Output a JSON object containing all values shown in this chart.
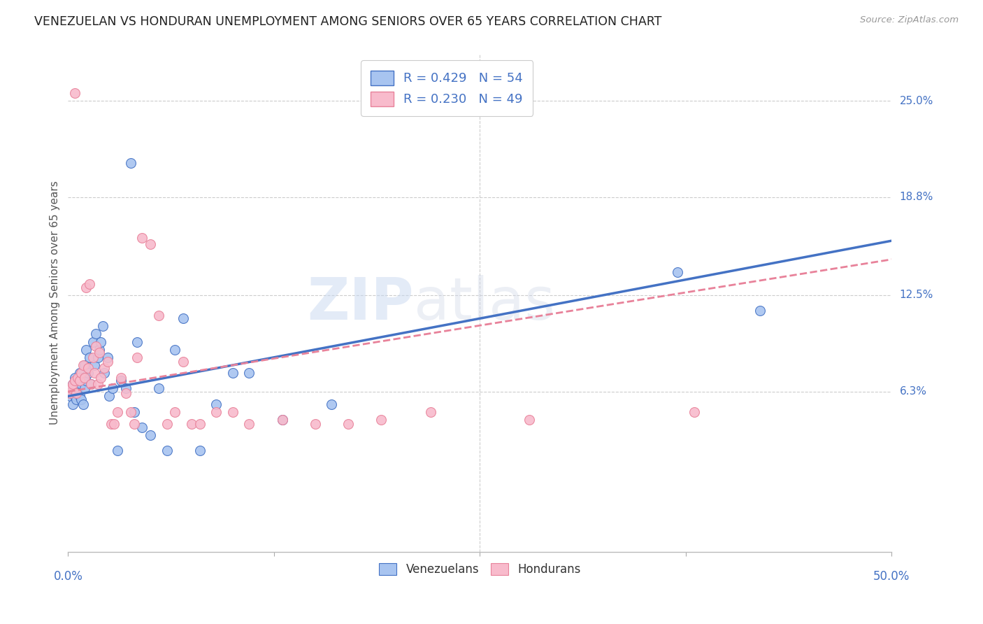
{
  "title": "VENEZUELAN VS HONDURAN UNEMPLOYMENT AMONG SENIORS OVER 65 YEARS CORRELATION CHART",
  "source": "Source: ZipAtlas.com",
  "ylabel": "Unemployment Among Seniors over 65 years",
  "ytick_labels": [
    "6.3%",
    "12.5%",
    "18.8%",
    "25.0%"
  ],
  "ytick_values": [
    0.063,
    0.125,
    0.188,
    0.25
  ],
  "xlim": [
    0.0,
    0.5
  ],
  "ylim": [
    -0.04,
    0.28
  ],
  "legend_label1": "Venezuelans",
  "legend_label2": "Hondurans",
  "r1": 0.429,
  "n1": 54,
  "r2": 0.23,
  "n2": 49,
  "color_blue": "#A8C4F0",
  "color_pink": "#F8BBCC",
  "color_line_blue": "#4472C4",
  "color_line_pink": "#E8829A",
  "color_title": "#222222",
  "color_axis_label": "#555555",
  "color_tick_blue": "#4472C4",
  "color_source": "#999999",
  "watermark_zip": "ZIP",
  "watermark_atlas": "atlas",
  "venezuelan_x": [
    0.001,
    0.002,
    0.003,
    0.003,
    0.004,
    0.004,
    0.005,
    0.005,
    0.006,
    0.006,
    0.007,
    0.007,
    0.008,
    0.008,
    0.009,
    0.009,
    0.01,
    0.01,
    0.011,
    0.011,
    0.012,
    0.013,
    0.014,
    0.015,
    0.016,
    0.017,
    0.018,
    0.019,
    0.02,
    0.021,
    0.022,
    0.024,
    0.025,
    0.027,
    0.03,
    0.032,
    0.035,
    0.038,
    0.04,
    0.042,
    0.045,
    0.05,
    0.055,
    0.06,
    0.065,
    0.07,
    0.08,
    0.09,
    0.1,
    0.11,
    0.13,
    0.16,
    0.37,
    0.42
  ],
  "venezuelan_y": [
    0.06,
    0.063,
    0.055,
    0.068,
    0.06,
    0.072,
    0.058,
    0.065,
    0.062,
    0.07,
    0.06,
    0.075,
    0.058,
    0.068,
    0.055,
    0.072,
    0.065,
    0.08,
    0.07,
    0.09,
    0.075,
    0.085,
    0.068,
    0.095,
    0.08,
    0.1,
    0.085,
    0.09,
    0.095,
    0.105,
    0.075,
    0.085,
    0.06,
    0.065,
    0.025,
    0.07,
    0.065,
    0.21,
    0.05,
    0.095,
    0.04,
    0.035,
    0.065,
    0.025,
    0.09,
    0.11,
    0.025,
    0.055,
    0.075,
    0.075,
    0.045,
    0.055,
    0.14,
    0.115
  ],
  "honduran_x": [
    0.001,
    0.002,
    0.003,
    0.004,
    0.004,
    0.005,
    0.006,
    0.007,
    0.008,
    0.009,
    0.01,
    0.011,
    0.012,
    0.013,
    0.014,
    0.015,
    0.016,
    0.017,
    0.018,
    0.019,
    0.02,
    0.022,
    0.024,
    0.026,
    0.028,
    0.03,
    0.032,
    0.035,
    0.038,
    0.04,
    0.042,
    0.045,
    0.05,
    0.055,
    0.06,
    0.065,
    0.07,
    0.075,
    0.08,
    0.09,
    0.1,
    0.11,
    0.13,
    0.15,
    0.17,
    0.19,
    0.22,
    0.28,
    0.38
  ],
  "honduran_y": [
    0.062,
    0.065,
    0.068,
    0.07,
    0.255,
    0.062,
    0.072,
    0.07,
    0.075,
    0.08,
    0.072,
    0.13,
    0.078,
    0.132,
    0.068,
    0.085,
    0.075,
    0.092,
    0.068,
    0.088,
    0.072,
    0.078,
    0.082,
    0.042,
    0.042,
    0.05,
    0.072,
    0.062,
    0.05,
    0.042,
    0.085,
    0.162,
    0.158,
    0.112,
    0.042,
    0.05,
    0.082,
    0.042,
    0.042,
    0.05,
    0.05,
    0.042,
    0.045,
    0.042,
    0.042,
    0.045,
    0.05,
    0.045,
    0.05
  ]
}
